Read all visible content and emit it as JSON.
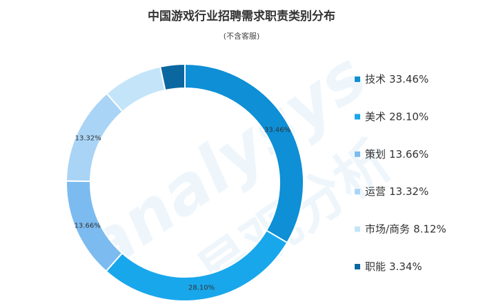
{
  "chart_data": {
    "type": "donut",
    "title": "中国游戏行业招聘需求职责类别分布",
    "subtitle": "(不含客服)",
    "categories": [
      "技术",
      "美术",
      "策划",
      "运营",
      "市场/商务",
      "职能"
    ],
    "values": [
      33.46,
      28.1,
      13.66,
      13.32,
      8.12,
      3.34
    ],
    "value_labels": [
      "33.46%",
      "28.10%",
      "13.66%",
      "13.32%",
      "8.12%",
      "3.34%"
    ],
    "colors": [
      "#0e8fd6",
      "#19a7ec",
      "#7bbbf0",
      "#a9d4f5",
      "#c4e5f9",
      "#0b67a0"
    ],
    "legend": "right",
    "watermark": [
      "analysys",
      "易观分析"
    ]
  }
}
